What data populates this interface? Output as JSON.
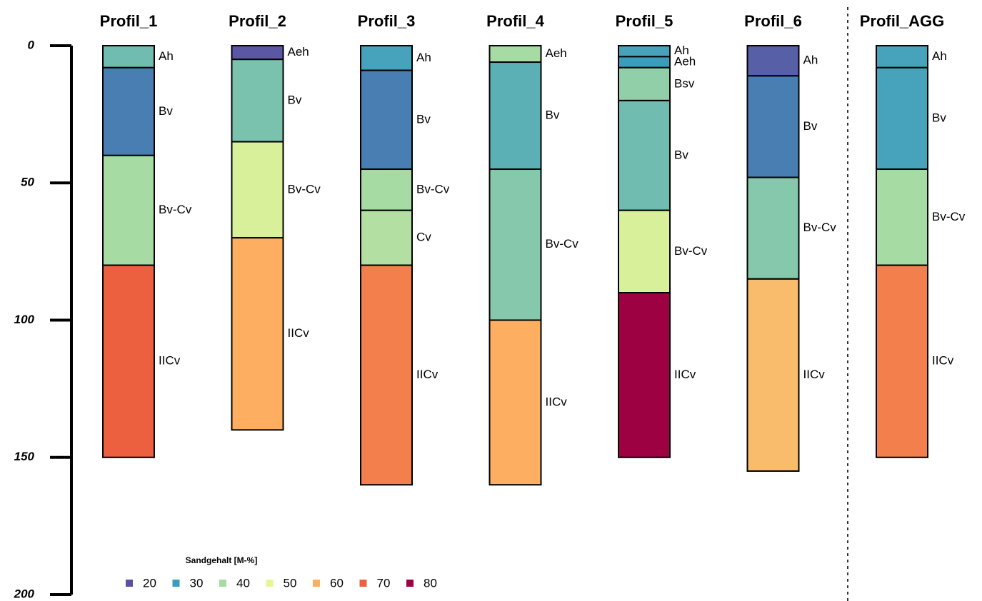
{
  "chart_data": {
    "type": "soil-profile",
    "ylim": [
      0,
      200
    ],
    "yticks": [
      0,
      50,
      100,
      150,
      200
    ],
    "profiles": [
      {
        "name": "Profil_1",
        "horizons": [
          {
            "name": "Ah",
            "top": 0,
            "bottom": 8,
            "sand": 35
          },
          {
            "name": "Bv",
            "top": 8,
            "bottom": 40,
            "sand": 26
          },
          {
            "name": "Bv-Cv",
            "top": 40,
            "bottom": 80,
            "sand": 40
          },
          {
            "name": "IICv",
            "top": 80,
            "bottom": 150,
            "sand": 70
          }
        ]
      },
      {
        "name": "Profil_2",
        "horizons": [
          {
            "name": "Aeh",
            "top": 0,
            "bottom": 5,
            "sand": 21
          },
          {
            "name": "Bv",
            "top": 5,
            "bottom": 35,
            "sand": 36
          },
          {
            "name": "Bv-Cv",
            "top": 35,
            "bottom": 70,
            "sand": 48
          },
          {
            "name": "IICv",
            "top": 70,
            "bottom": 140,
            "sand": 60
          }
        ]
      },
      {
        "name": "Profil_3",
        "horizons": [
          {
            "name": "Ah",
            "top": 0,
            "bottom": 9,
            "sand": 31
          },
          {
            "name": "Bv",
            "top": 9,
            "bottom": 45,
            "sand": 26
          },
          {
            "name": "Bv-Cv",
            "top": 45,
            "bottom": 60,
            "sand": 40
          },
          {
            "name": "Cv",
            "top": 60,
            "bottom": 80,
            "sand": 42
          },
          {
            "name": "IICv",
            "top": 80,
            "bottom": 160,
            "sand": 66
          }
        ]
      },
      {
        "name": "Profil_4",
        "horizons": [
          {
            "name": "Aeh",
            "top": 0,
            "bottom": 6,
            "sand": 40
          },
          {
            "name": "Bv",
            "top": 6,
            "bottom": 45,
            "sand": 33
          },
          {
            "name": "Bv-Cv",
            "top": 45,
            "bottom": 100,
            "sand": 37
          },
          {
            "name": "IICv",
            "top": 100,
            "bottom": 160,
            "sand": 60
          }
        ]
      },
      {
        "name": "Profil_5",
        "horizons": [
          {
            "name": "Ah",
            "top": 0,
            "bottom": 4,
            "sand": 31
          },
          {
            "name": "Aeh",
            "top": 4,
            "bottom": 8,
            "sand": 30
          },
          {
            "name": "Bsv",
            "top": 8,
            "bottom": 20,
            "sand": 38
          },
          {
            "name": "Bv",
            "top": 20,
            "bottom": 60,
            "sand": 35
          },
          {
            "name": "Bv-Cv",
            "top": 60,
            "bottom": 90,
            "sand": 48
          },
          {
            "name": "IICv",
            "top": 90,
            "bottom": 150,
            "sand": 80
          }
        ]
      },
      {
        "name": "Profil_6",
        "horizons": [
          {
            "name": "Ah",
            "top": 0,
            "bottom": 11,
            "sand": 22
          },
          {
            "name": "Bv",
            "top": 11,
            "bottom": 48,
            "sand": 26
          },
          {
            "name": "Bv-Cv",
            "top": 48,
            "bottom": 85,
            "sand": 37
          },
          {
            "name": "IICv",
            "top": 85,
            "bottom": 155,
            "sand": 58
          }
        ]
      },
      {
        "name": "Profil_AGG",
        "horizons": [
          {
            "name": "Ah",
            "top": 0,
            "bottom": 8,
            "sand": 31
          },
          {
            "name": "Bv",
            "top": 8,
            "bottom": 45,
            "sand": 31
          },
          {
            "name": "Bv-Cv",
            "top": 45,
            "bottom": 80,
            "sand": 40
          },
          {
            "name": "IICv",
            "top": 80,
            "bottom": 150,
            "sand": 66
          }
        ]
      }
    ],
    "legend": {
      "title": "Sandgehalt [M-%]",
      "values": [
        20,
        30,
        40,
        50,
        60,
        70,
        80
      ],
      "colors": [
        "#5e4fa2",
        "#3b9dbd",
        "#a6dba4",
        "#e6f598",
        "#fdae61",
        "#ec5f3f",
        "#9e0142"
      ]
    }
  }
}
